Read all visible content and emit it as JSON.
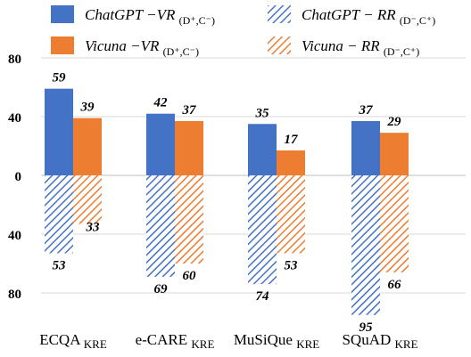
{
  "colors": {
    "chatgpt": "#4472C4",
    "vicuna": "#ED7D31",
    "gridline": "#d9d9d9",
    "zero_line": "#bfbfbf"
  },
  "chart_data": {
    "type": "bar",
    "categories": [
      {
        "base": "ECQA",
        "sub": "KRE"
      },
      {
        "base": "e-CARE",
        "sub": "KRE"
      },
      {
        "base": "MuSiQue",
        "sub": "KRE"
      },
      {
        "base": "SQuAD",
        "sub": "KRE"
      }
    ],
    "series": [
      {
        "name": "ChatGPT −VR (D⁺,C⁻)",
        "key": "chatgpt_vr",
        "direction": "up",
        "fill": "solid",
        "color_key": "chatgpt",
        "values": [
          59,
          42,
          35,
          37
        ]
      },
      {
        "name": "Vicuna −VR (D⁺,C⁻)",
        "key": "vicuna_vr",
        "direction": "up",
        "fill": "solid",
        "color_key": "vicuna",
        "values": [
          39,
          37,
          17,
          29
        ]
      },
      {
        "name": "ChatGPT − RR (D⁻,C⁺)",
        "key": "chatgpt_rr",
        "direction": "down",
        "fill": "hatch",
        "color_key": "chatgpt",
        "values": [
          53,
          69,
          74,
          95
        ]
      },
      {
        "name": "Vicuna − RR (D⁻,C⁺)",
        "key": "vicuna_rr",
        "direction": "down",
        "fill": "hatch",
        "color_key": "vicuna",
        "values": [
          33,
          60,
          53,
          66
        ]
      }
    ],
    "y_ticks": [
      {
        "value": 80,
        "label": "80"
      },
      {
        "value": 40,
        "label": "40"
      },
      {
        "value": 0,
        "label": "0"
      },
      {
        "value": -40,
        "label": "40"
      },
      {
        "value": -80,
        "label": "80"
      }
    ],
    "ylim": [
      -100,
      100
    ],
    "grid": true,
    "legend_position": "top",
    "legend": [
      {
        "main": "ChatGPT −VR ",
        "sub": "(D⁺,C⁻)",
        "swatch": "solid",
        "color_key": "chatgpt"
      },
      {
        "main": "ChatGPT − RR ",
        "sub": "(D⁻,C⁺)",
        "swatch": "hatch",
        "color_key": "chatgpt"
      },
      {
        "main": "Vicuna −VR ",
        "sub": "(D⁺,C⁻)",
        "swatch": "solid",
        "color_key": "vicuna"
      },
      {
        "main": "Vicuna − RR ",
        "sub": "(D⁻,C⁺)",
        "swatch": "hatch",
        "color_key": "vicuna"
      }
    ]
  }
}
